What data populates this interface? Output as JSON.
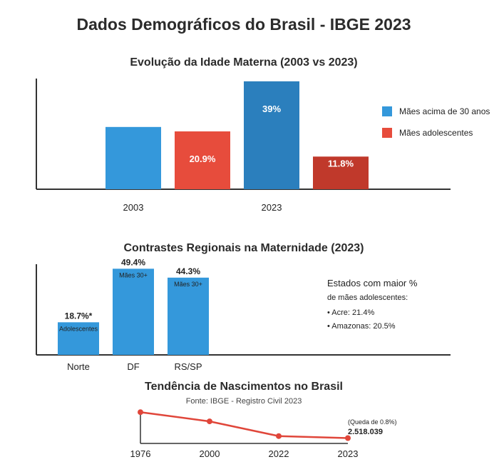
{
  "title": "Dados Demográficos do Brasil - IBGE 2023",
  "colors": {
    "blue": "#3498db",
    "blue_dark": "#2b7fbd",
    "red": "#e74c3c",
    "red_dark": "#c0392b",
    "line": "#e0463a",
    "axis": "#333333"
  },
  "chart_data": [
    {
      "type": "bar",
      "title": "Evolução da Idade Materna (2003 vs 2023)",
      "categories": [
        "2003",
        "2023"
      ],
      "series": [
        {
          "name": "Mães acima de 30 anos",
          "values": [
            22.5,
            39
          ],
          "labels": [
            "",
            "39%"
          ]
        },
        {
          "name": "Mães adolescentes",
          "values": [
            20.9,
            11.8
          ],
          "labels": [
            "20.9%",
            "11.8%"
          ]
        }
      ],
      "ylim": [
        0,
        40
      ],
      "legend": "right"
    },
    {
      "type": "bar",
      "title": "Contrastes Regionais na Maternidade (2023)",
      "categories": [
        "Norte",
        "DF",
        "RS/SP"
      ],
      "values": [
        18.7,
        49.4,
        44.3
      ],
      "value_labels": [
        "18.7%*",
        "49.4%",
        "44.3%"
      ],
      "inner_labels": [
        "Adolescentes",
        "Mães 30+",
        "Mães 30+"
      ],
      "ylim": [
        0,
        52
      ]
    },
    {
      "type": "line",
      "title": "Tendência de Nascimentos no Brasil",
      "subtitle": "Fonte: IBGE - Registro Civil 2023",
      "x": [
        "1976",
        "2000",
        "2022",
        "2023"
      ],
      "y": [
        2.8,
        2.7,
        2.54,
        2.518
      ],
      "annotation_top": "(Queda de 0.8%)",
      "annotation_value": "2.518.039"
    }
  ],
  "notes": {
    "heading_line1": "Estados com maior %",
    "heading_line2": "de mães adolescentes:",
    "items": [
      "• Acre: 21.4%",
      "• Amazonas: 20.5%"
    ]
  }
}
